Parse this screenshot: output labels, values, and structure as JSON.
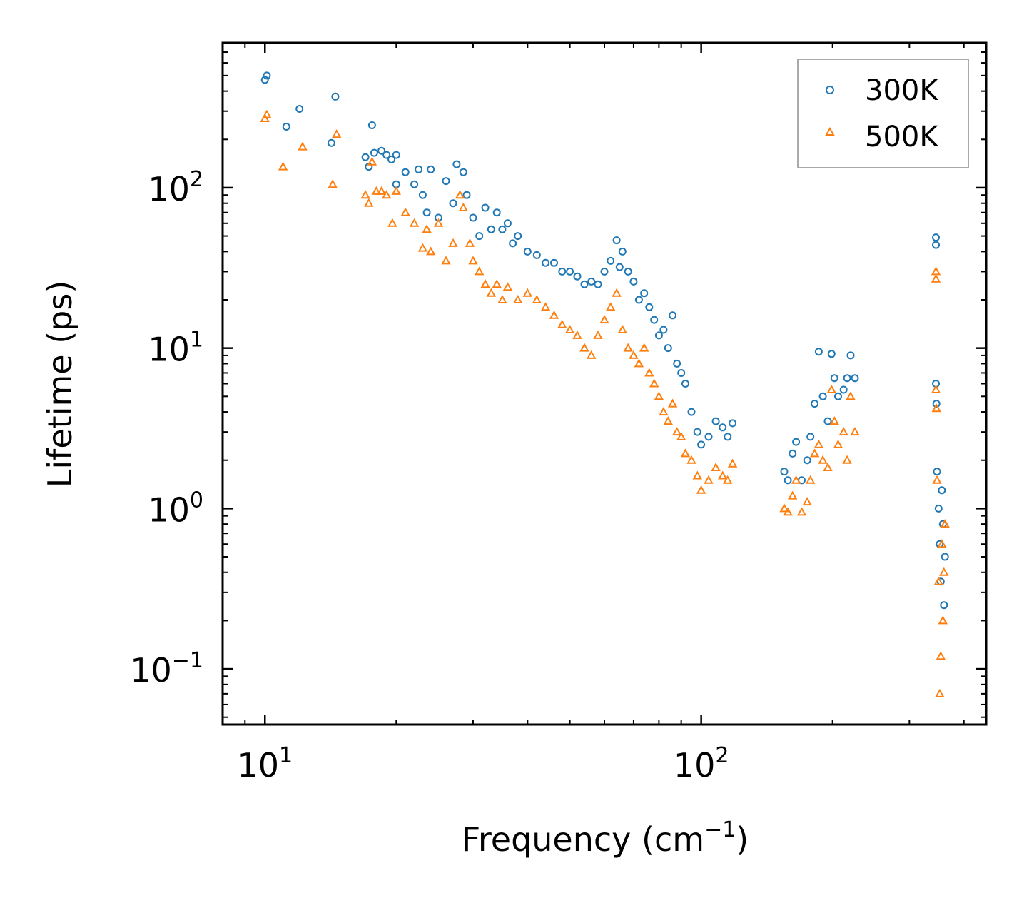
{
  "chart_data": {
    "type": "scatter",
    "title": "",
    "xlabel": "Frequency (cm",
    "xlabel_superscript": "−1",
    "xlabel_suffix": ")",
    "ylabel": "Lifetime (ps)",
    "xscale": "log",
    "yscale": "log",
    "xlim": [
      8.0,
      450.0
    ],
    "ylim": [
      0.045,
      800.0
    ],
    "x_ticks": [
      {
        "value": 10,
        "base": "10",
        "exp": "1"
      },
      {
        "value": 100,
        "base": "10",
        "exp": "2"
      }
    ],
    "y_ticks": [
      {
        "value": 0.1,
        "base": "10",
        "exp": "−1"
      },
      {
        "value": 1,
        "base": "10",
        "exp": "0"
      },
      {
        "value": 10,
        "base": "10",
        "exp": "1"
      },
      {
        "value": 100,
        "base": "10",
        "exp": "2"
      }
    ],
    "legend": {
      "position": "top-right",
      "entries": [
        "300K",
        "500K"
      ]
    },
    "colors": {
      "300K": "#1f77b4",
      "500K": "#ff7f0e"
    },
    "series": [
      {
        "name": "300K",
        "marker": "circle",
        "points": [
          [
            10.0,
            470
          ],
          [
            10.1,
            500
          ],
          [
            11.2,
            240
          ],
          [
            12.0,
            310
          ],
          [
            14.2,
            190
          ],
          [
            14.5,
            370
          ],
          [
            17.0,
            155
          ],
          [
            17.3,
            135
          ],
          [
            17.6,
            245
          ],
          [
            17.8,
            165
          ],
          [
            18.5,
            170
          ],
          [
            19.0,
            160
          ],
          [
            19.5,
            150
          ],
          [
            20.0,
            160
          ],
          [
            20.0,
            105
          ],
          [
            21.0,
            125
          ],
          [
            22.0,
            105
          ],
          [
            22.5,
            130
          ],
          [
            23.0,
            90
          ],
          [
            23.5,
            70
          ],
          [
            24.0,
            130
          ],
          [
            25.0,
            65
          ],
          [
            26.0,
            110
          ],
          [
            27.0,
            80
          ],
          [
            27.5,
            140
          ],
          [
            28.5,
            125
          ],
          [
            29.0,
            90
          ],
          [
            30.0,
            65
          ],
          [
            31.0,
            50
          ],
          [
            32.0,
            75
          ],
          [
            33.0,
            55
          ],
          [
            34.0,
            70
          ],
          [
            35.0,
            55
          ],
          [
            36.0,
            60
          ],
          [
            37.0,
            45
          ],
          [
            38.0,
            50
          ],
          [
            40.0,
            40
          ],
          [
            42.0,
            38
          ],
          [
            44.0,
            34
          ],
          [
            46.0,
            34
          ],
          [
            48.0,
            30
          ],
          [
            50.0,
            30
          ],
          [
            52.0,
            28
          ],
          [
            54.0,
            25
          ],
          [
            56.0,
            26
          ],
          [
            58.0,
            25
          ],
          [
            60.0,
            30
          ],
          [
            62.0,
            35
          ],
          [
            64.0,
            47
          ],
          [
            65.0,
            32
          ],
          [
            66.0,
            40
          ],
          [
            68.0,
            30
          ],
          [
            70.0,
            26
          ],
          [
            72.0,
            20
          ],
          [
            74.0,
            22
          ],
          [
            76.0,
            18
          ],
          [
            78.0,
            15
          ],
          [
            80.0,
            12
          ],
          [
            82.0,
            13
          ],
          [
            84.0,
            10
          ],
          [
            86.0,
            16
          ],
          [
            88.0,
            8
          ],
          [
            90.0,
            7
          ],
          [
            92.0,
            6
          ],
          [
            95.0,
            4
          ],
          [
            98.0,
            3
          ],
          [
            100.0,
            2.5
          ],
          [
            104.0,
            2.8
          ],
          [
            108.0,
            3.5
          ],
          [
            112.0,
            3.2
          ],
          [
            115.0,
            2.8
          ],
          [
            118.0,
            3.4
          ],
          [
            155.0,
            1.7
          ],
          [
            158.0,
            1.5
          ],
          [
            162.0,
            2.2
          ],
          [
            165.0,
            2.6
          ],
          [
            170.0,
            1.5
          ],
          [
            175.0,
            2.0
          ],
          [
            178.0,
            2.8
          ],
          [
            182.0,
            4.5
          ],
          [
            186.0,
            9.5
          ],
          [
            190.0,
            5.0
          ],
          [
            195.0,
            3.5
          ],
          [
            199.0,
            9.2
          ],
          [
            202.0,
            6.5
          ],
          [
            206.0,
            5.0
          ],
          [
            212.0,
            5.5
          ],
          [
            216.0,
            6.5
          ],
          [
            220.0,
            9.0
          ],
          [
            225.0,
            6.5
          ],
          [
            345.0,
            49
          ],
          [
            345.0,
            44
          ],
          [
            345.0,
            6.0
          ],
          [
            346.0,
            4.5
          ],
          [
            347.0,
            1.7
          ],
          [
            350.0,
            1.0
          ],
          [
            352.0,
            0.6
          ],
          [
            354.0,
            0.35
          ],
          [
            356.0,
            1.3
          ],
          [
            358.0,
            0.8
          ],
          [
            360.0,
            0.25
          ],
          [
            362.0,
            0.5
          ]
        ]
      },
      {
        "name": "500K",
        "marker": "triangle",
        "points": [
          [
            10.0,
            270
          ],
          [
            10.1,
            285
          ],
          [
            11.0,
            135
          ],
          [
            12.2,
            180
          ],
          [
            14.3,
            105
          ],
          [
            14.6,
            215
          ],
          [
            17.0,
            90
          ],
          [
            17.3,
            80
          ],
          [
            17.6,
            145
          ],
          [
            18.0,
            95
          ],
          [
            18.5,
            95
          ],
          [
            19.0,
            90
          ],
          [
            19.6,
            60
          ],
          [
            20.0,
            95
          ],
          [
            21.0,
            70
          ],
          [
            22.0,
            60
          ],
          [
            23.0,
            42
          ],
          [
            23.5,
            55
          ],
          [
            24.0,
            40
          ],
          [
            25.0,
            60
          ],
          [
            26.0,
            35
          ],
          [
            27.0,
            45
          ],
          [
            28.0,
            90
          ],
          [
            28.5,
            75
          ],
          [
            29.5,
            45
          ],
          [
            30.0,
            35
          ],
          [
            31.0,
            30
          ],
          [
            32.0,
            25
          ],
          [
            33.0,
            22
          ],
          [
            34.0,
            25
          ],
          [
            35.0,
            20
          ],
          [
            36.0,
            24
          ],
          [
            38.0,
            20
          ],
          [
            40.0,
            22
          ],
          [
            42.0,
            20
          ],
          [
            44.0,
            18
          ],
          [
            46.0,
            16
          ],
          [
            48.0,
            14
          ],
          [
            50.0,
            13
          ],
          [
            52.0,
            12
          ],
          [
            54.0,
            10
          ],
          [
            56.0,
            9
          ],
          [
            58.0,
            12
          ],
          [
            60.0,
            15
          ],
          [
            62.0,
            18
          ],
          [
            64.0,
            22
          ],
          [
            66.0,
            13
          ],
          [
            68.0,
            10
          ],
          [
            70.0,
            9
          ],
          [
            72.0,
            8
          ],
          [
            74.0,
            10
          ],
          [
            76.0,
            7
          ],
          [
            78.0,
            6
          ],
          [
            80.0,
            5
          ],
          [
            82.0,
            4
          ],
          [
            84.0,
            3.5
          ],
          [
            86.0,
            4.5
          ],
          [
            88.0,
            3.0
          ],
          [
            90.0,
            2.8
          ],
          [
            92.0,
            2.2
          ],
          [
            95.0,
            2.0
          ],
          [
            98.0,
            1.6
          ],
          [
            100.0,
            1.3
          ],
          [
            104.0,
            1.5
          ],
          [
            108.0,
            1.8
          ],
          [
            112.0,
            1.6
          ],
          [
            115.0,
            1.5
          ],
          [
            118.0,
            1.9
          ],
          [
            155.0,
            1.0
          ],
          [
            158.0,
            0.95
          ],
          [
            162.0,
            1.2
          ],
          [
            165.0,
            1.5
          ],
          [
            170.0,
            0.95
          ],
          [
            175.0,
            1.1
          ],
          [
            178.0,
            1.5
          ],
          [
            182.0,
            2.2
          ],
          [
            186.0,
            2.5
          ],
          [
            190.0,
            2.0
          ],
          [
            195.0,
            1.8
          ],
          [
            199.0,
            5.5
          ],
          [
            202.0,
            3.5
          ],
          [
            206.0,
            2.5
          ],
          [
            212.0,
            3.0
          ],
          [
            216.0,
            2.0
          ],
          [
            220.0,
            5.0
          ],
          [
            225.0,
            3.0
          ],
          [
            345.0,
            30
          ],
          [
            345.0,
            27
          ],
          [
            345.0,
            5.5
          ],
          [
            346.0,
            4.2
          ],
          [
            347.0,
            1.5
          ],
          [
            350.0,
            0.35
          ],
          [
            352.0,
            0.07
          ],
          [
            354.0,
            0.12
          ],
          [
            356.0,
            0.6
          ],
          [
            358.0,
            0.2
          ],
          [
            360.0,
            0.4
          ],
          [
            362.0,
            0.8
          ]
        ]
      }
    ]
  }
}
